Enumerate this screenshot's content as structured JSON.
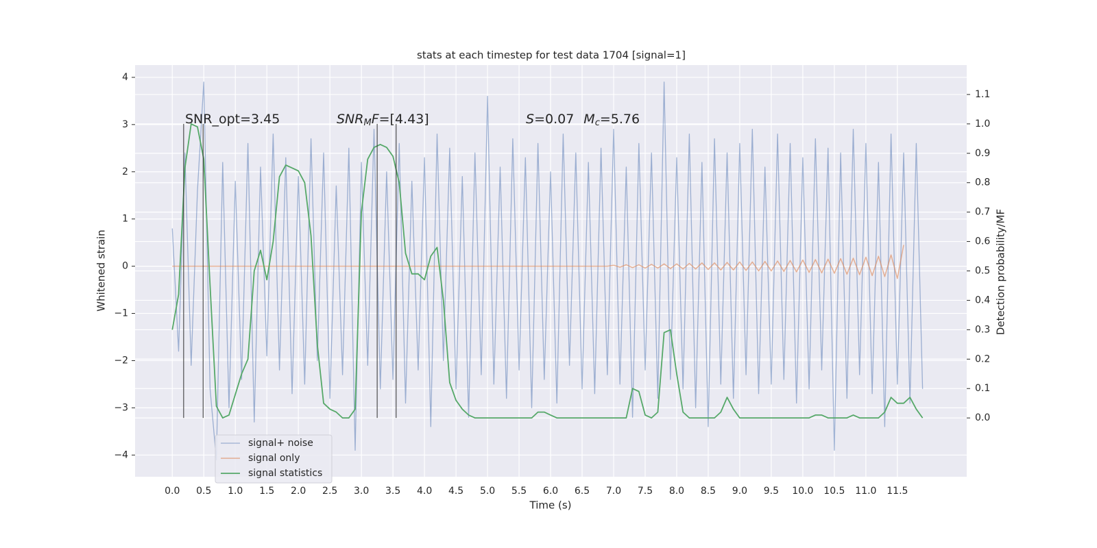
{
  "chart_data": {
    "type": "line",
    "title": "stats at each timestep for test data 1704 [signal=1]",
    "xlabel": "Time (s)",
    "ylabel": "Whitened strain",
    "y2label": "Detection probability/MF",
    "annotations": [
      [
        "SNR_opt=3.45"
      ],
      [
        "SNR",
        "M",
        "F",
        "=[4.43]"
      ],
      [
        "S",
        "=0.07",
        "M",
        "c",
        "=5.76"
      ]
    ],
    "vlines": {
      "x": [
        0.18,
        0.49,
        3.25,
        3.55
      ],
      "y2": [
        0,
        1
      ],
      "color": "#333333"
    },
    "x": [
      0.0,
      0.1,
      0.2,
      0.3,
      0.4,
      0.5,
      0.6,
      0.7,
      0.8,
      0.9,
      1.0,
      1.1,
      1.2,
      1.3,
      1.4,
      1.5,
      1.6,
      1.7,
      1.8,
      1.9,
      2.0,
      2.1,
      2.2,
      2.3,
      2.4,
      2.5,
      2.6,
      2.7,
      2.8,
      2.9,
      3.0,
      3.1,
      3.2,
      3.3,
      3.4,
      3.5,
      3.6,
      3.7,
      3.8,
      3.9,
      4.0,
      4.1,
      4.2,
      4.3,
      4.4,
      4.5,
      4.6,
      4.7,
      4.8,
      4.9,
      5.0,
      5.1,
      5.2,
      5.3,
      5.4,
      5.5,
      5.6,
      5.7,
      5.8,
      5.9,
      6.0,
      6.1,
      6.2,
      6.3,
      6.4,
      6.5,
      6.6,
      6.7,
      6.8,
      6.9,
      7.0,
      7.1,
      7.2,
      7.3,
      7.4,
      7.5,
      7.6,
      7.7,
      7.8,
      7.9,
      8.0,
      8.1,
      8.2,
      8.3,
      8.4,
      8.5,
      8.6,
      8.7,
      8.8,
      8.9,
      9.0,
      9.1,
      9.2,
      9.3,
      9.4,
      9.5,
      9.6,
      9.7,
      9.8,
      9.9,
      10.0,
      10.1,
      10.2,
      10.3,
      10.4,
      10.5,
      10.6,
      10.7,
      10.8,
      10.9,
      11.0,
      11.1,
      11.2,
      11.3,
      11.4,
      11.5,
      11.6,
      11.7,
      11.8,
      11.9
    ],
    "series": [
      {
        "name": "signal+ noise",
        "color": "#4c72b0",
        "values": [
          0.8,
          -1.8,
          2.4,
          -2.1,
          1.6,
          3.9,
          -2.6,
          -4.1,
          2.2,
          -3.0,
          1.8,
          -2.4,
          2.6,
          -3.3,
          2.1,
          -1.9,
          2.8,
          -2.2,
          2.3,
          -2.7,
          1.9,
          -2.5,
          2.7,
          -2.0,
          2.4,
          -2.8,
          1.7,
          -2.3,
          2.5,
          -3.9,
          2.2,
          -2.1,
          2.9,
          -2.6,
          2.0,
          -2.4,
          2.6,
          -2.9,
          1.8,
          -2.2,
          2.3,
          -3.4,
          2.8,
          -2.0,
          2.5,
          -2.6,
          1.9,
          -3.2,
          2.4,
          -2.3,
          3.6,
          -2.5,
          2.1,
          -2.8,
          2.7,
          -2.2,
          2.3,
          -3.0,
          2.6,
          -2.4,
          2.0,
          -2.9,
          2.8,
          -2.1,
          2.4,
          -2.6,
          2.2,
          -2.7,
          2.5,
          -2.3,
          2.9,
          -2.5,
          2.1,
          -3.2,
          2.6,
          -2.2,
          2.4,
          -2.8,
          3.9,
          -2.4,
          2.3,
          -2.6,
          2.8,
          -3.0,
          2.2,
          -3.4,
          2.7,
          -2.5,
          2.4,
          -2.8,
          2.6,
          -2.3,
          2.9,
          -2.7,
          2.1,
          -2.5,
          2.8,
          -2.4,
          2.6,
          -2.9,
          2.3,
          -2.6,
          2.7,
          -2.2,
          2.5,
          -3.9,
          2.4,
          -2.8,
          2.9,
          -2.3,
          2.6,
          -2.7,
          2.2,
          -3.4,
          2.8,
          -2.5,
          2.4,
          -2.9,
          2.6,
          -2.6
        ]
      },
      {
        "name": "signal only",
        "color": "#dd8452",
        "values": [
          0,
          0,
          0,
          0,
          0,
          0,
          0,
          0,
          0,
          0,
          0,
          0,
          0,
          0,
          0,
          0,
          0,
          0,
          0,
          0,
          0,
          0,
          0,
          0,
          0,
          0,
          0,
          0,
          0,
          0,
          0,
          0,
          0,
          0,
          0,
          0,
          0,
          0,
          0,
          0,
          0,
          0,
          0,
          0,
          0,
          0,
          0,
          0,
          0,
          0,
          0,
          0,
          0,
          0,
          0,
          0,
          0,
          0,
          0,
          0,
          0,
          0,
          0,
          0,
          0,
          0,
          0,
          0,
          0,
          0,
          0.02,
          -0.02,
          0.03,
          -0.03,
          0.03,
          -0.04,
          0.04,
          -0.04,
          0.05,
          -0.05,
          0.05,
          -0.06,
          0.06,
          -0.06,
          0.07,
          -0.07,
          0.07,
          -0.08,
          0.08,
          -0.08,
          0.09,
          -0.09,
          0.09,
          -0.1,
          0.1,
          -0.1,
          0.11,
          -0.11,
          0.12,
          -0.12,
          0.13,
          -0.13,
          0.14,
          -0.14,
          0.15,
          -0.15,
          0.16,
          -0.17,
          0.17,
          -0.18,
          0.19,
          -0.2,
          0.21,
          -0.22,
          0.24,
          -0.26,
          0.45,
          null,
          null,
          null
        ]
      },
      {
        "name": "signal statistics",
        "color": "#55a868",
        "axis": "y2",
        "values": [
          0.3,
          0.42,
          0.85,
          1.0,
          0.99,
          0.88,
          0.45,
          0.04,
          0.0,
          0.01,
          0.08,
          0.15,
          0.2,
          0.5,
          0.57,
          0.47,
          0.6,
          0.82,
          0.86,
          0.85,
          0.84,
          0.8,
          0.62,
          0.25,
          0.05,
          0.03,
          0.02,
          0.0,
          0.0,
          0.03,
          0.7,
          0.88,
          0.92,
          0.93,
          0.92,
          0.89,
          0.8,
          0.56,
          0.49,
          0.49,
          0.47,
          0.55,
          0.58,
          0.4,
          0.12,
          0.06,
          0.03,
          0.01,
          0.0,
          0.0,
          0.0,
          0.0,
          0.0,
          0.0,
          0.0,
          0.0,
          0.0,
          0.0,
          0.02,
          0.02,
          0.01,
          0.0,
          0.0,
          0.0,
          0.0,
          0.0,
          0.0,
          0.0,
          0.0,
          0.0,
          0.0,
          0.0,
          0.0,
          0.1,
          0.09,
          0.01,
          0.0,
          0.02,
          0.29,
          0.3,
          0.15,
          0.02,
          0.0,
          0.0,
          0.0,
          0.0,
          0.0,
          0.02,
          0.07,
          0.03,
          0.0,
          0.0,
          0.0,
          0.0,
          0.0,
          0.0,
          0.0,
          0.0,
          0.0,
          0.0,
          0.0,
          0.0,
          0.01,
          0.01,
          0.0,
          0.0,
          0.0,
          0.0,
          0.01,
          0.0,
          0.0,
          0.0,
          0.0,
          0.02,
          0.07,
          0.05,
          0.05,
          0.07,
          0.03,
          0.0
        ]
      }
    ],
    "xlim": [
      -0.59,
      12.6
    ],
    "ylim": [
      -4.46,
      4.26
    ],
    "y2lim": [
      -0.2,
      1.2
    ],
    "xticks": [
      {
        "value": 0,
        "label": "0.0"
      },
      0.5,
      {
        "value": 1,
        "label": "1.0"
      },
      1.5,
      {
        "value": 2,
        "label": "2.0"
      },
      2.5,
      {
        "value": 3,
        "label": "3.0"
      },
      3.5,
      {
        "value": 4,
        "label": "4.0"
      },
      4.5,
      {
        "value": 5,
        "label": "5.0"
      },
      5.5,
      {
        "value": 6,
        "label": "6.0"
      },
      6.5,
      {
        "value": 7,
        "label": "7.0"
      },
      7.5,
      {
        "value": 8,
        "label": "8.0"
      },
      8.5,
      {
        "value": 9,
        "label": "9.0"
      },
      9.5,
      {
        "value": 10,
        "label": "10.0"
      },
      10.5,
      {
        "value": 11,
        "label": "11.0"
      },
      11.5
    ],
    "yticks": [
      {
        "value": -4,
        "label": "−4"
      },
      {
        "value": -3,
        "label": "−3"
      },
      {
        "value": -2,
        "label": "−2"
      },
      {
        "value": -1,
        "label": "−1"
      },
      0,
      1,
      2,
      3,
      4
    ],
    "y2ticks": [
      {
        "value": 0,
        "label": "0.0"
      },
      0.1,
      0.2,
      0.3,
      0.4,
      0.5,
      0.6,
      0.7,
      0.8,
      0.9,
      {
        "value": 1,
        "label": "1.0"
      },
      1.1
    ],
    "grid": true,
    "legend": "lower left"
  }
}
